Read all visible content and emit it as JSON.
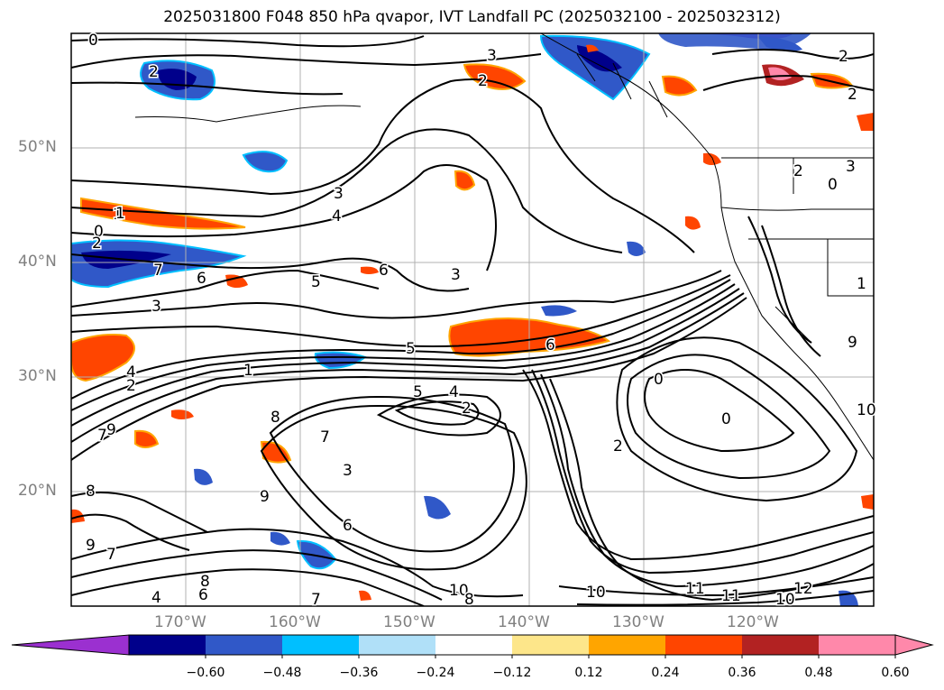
{
  "title": "2025031800 F048 850 hPa qvapor, IVT Landfall PC (2025032100 - 2025032312)",
  "map": {
    "lat_ticks": [
      "50°N",
      "40°N",
      "30°N",
      "20°N"
    ],
    "lon_ticks": [
      "170°W",
      "160°W",
      "150°W",
      "140°W",
      "130°W",
      "120°W"
    ],
    "contour_labels": [
      "0",
      "3",
      "2",
      "2",
      "1",
      "2",
      "2",
      "3",
      "4",
      "1",
      "0",
      "2",
      "7",
      "6",
      "5",
      "6",
      "3",
      "3",
      "5",
      "6",
      "2",
      "7",
      "8",
      "5",
      "4",
      "2",
      "6",
      "1",
      "0",
      "0",
      "2",
      "3",
      "8",
      "9",
      "7",
      "9",
      "9",
      "8",
      "7",
      "6",
      "4",
      "7",
      "10",
      "8",
      "10",
      "11",
      "10",
      "11",
      "12",
      "9",
      "10",
      "0",
      "4",
      "2",
      "3",
      "1"
    ]
  },
  "colorbar": {
    "ticks": [
      "−0.60",
      "−0.48",
      "−0.36",
      "−0.24",
      "−0.12",
      "0.12",
      "0.24",
      "0.36",
      "0.48",
      "0.60"
    ],
    "colors": [
      "#9b30d0",
      "#00008b",
      "#3058c8",
      "#00bfff",
      "#b0e0f8",
      "#ffffff",
      "#fde68a",
      "#ffa500",
      "#ff4500",
      "#b22222",
      "#ff88aa",
      "#ff88aa"
    ]
  },
  "chart_data": {
    "type": "heatmap",
    "title": "2025031800 F048 850 hPa qvapor, IVT Landfall PC (2025032100 - 2025032312)",
    "xlabel": "",
    "ylabel": "",
    "lon_ticks": [
      "170°W",
      "160°W",
      "150°W",
      "140°W",
      "130°W",
      "120°W"
    ],
    "lat_ticks": [
      "50°N",
      "40°N",
      "30°N",
      "20°N"
    ],
    "grid": true,
    "colorbar_levels": [
      -0.6,
      -0.48,
      -0.36,
      -0.24,
      -0.12,
      0.12,
      0.24,
      0.36,
      0.48,
      0.6
    ],
    "colorbar_extend": "both"
  }
}
